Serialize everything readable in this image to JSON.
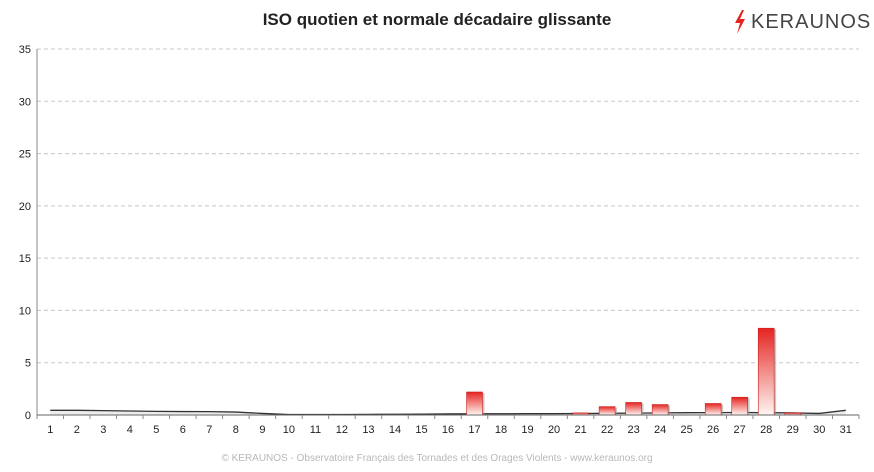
{
  "brand": {
    "name": "KERAUNOS",
    "accent": "#e52421",
    "icon": "lightning-bolt-icon"
  },
  "footer": "© KERAUNOS - Observatoire Français des Tornades et des Orages Violents - www.keraunos.org",
  "chart_data": {
    "type": "bar",
    "title": "ISO quotien et normale décadaire glissante",
    "xlabel": "",
    "ylabel": "",
    "ylim": [
      0,
      35
    ],
    "yticks": [
      0,
      5,
      10,
      15,
      20,
      25,
      30,
      35
    ],
    "grid": true,
    "categories": [
      "1",
      "2",
      "3",
      "4",
      "5",
      "6",
      "7",
      "8",
      "9",
      "10",
      "11",
      "12",
      "13",
      "14",
      "15",
      "16",
      "17",
      "18",
      "19",
      "20",
      "21",
      "22",
      "23",
      "24",
      "25",
      "26",
      "27",
      "28",
      "29",
      "30",
      "31"
    ],
    "series": [
      {
        "type": "bar",
        "color": "#e52421",
        "values": [
          0,
          0,
          0,
          0,
          0,
          0,
          0,
          0,
          0,
          0,
          0,
          0,
          0,
          0,
          0,
          0,
          2.2,
          0,
          0,
          0,
          0.2,
          0.8,
          1.2,
          1.0,
          0,
          1.1,
          1.7,
          8.3,
          0.2,
          0,
          0
        ]
      },
      {
        "type": "area",
        "color": "#333333",
        "values": [
          0.45,
          0.45,
          0.42,
          0.38,
          0.35,
          0.33,
          0.32,
          0.28,
          0.15,
          0.05,
          0.05,
          0.05,
          0.06,
          0.07,
          0.08,
          0.1,
          0.12,
          0.12,
          0.13,
          0.13,
          0.14,
          0.16,
          0.18,
          0.2,
          0.22,
          0.23,
          0.24,
          0.22,
          0.2,
          0.15,
          0.45
        ]
      }
    ]
  }
}
